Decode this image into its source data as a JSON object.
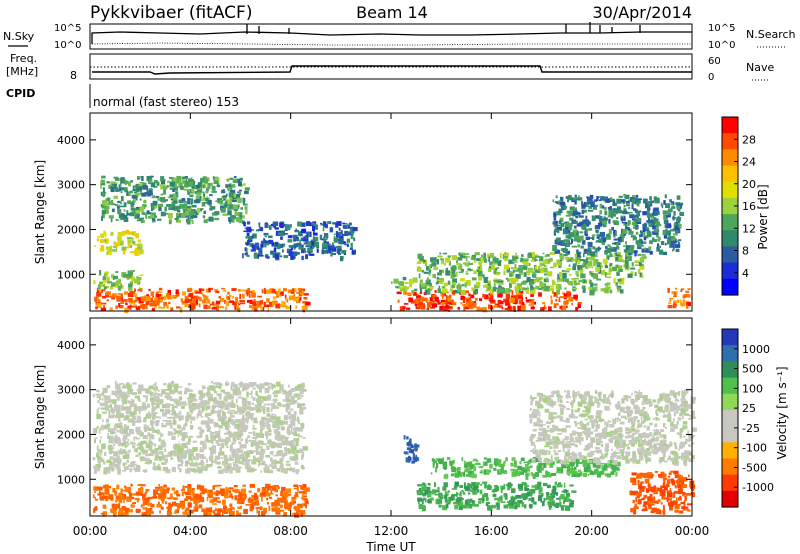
{
  "header": {
    "station": "Pykkvibaer (fitACF)",
    "beam": "Beam 14",
    "date": "30/Apr/2014"
  },
  "top_panel": {
    "nsky_label": "N.Sky",
    "nsearch_label": "N.Search",
    "left_ticks": [
      "10^5",
      "10^0"
    ],
    "right_ticks": [
      "10^5",
      "10^0"
    ],
    "freq_label": "Freq.",
    "freq_unit": "[MHz]",
    "freq_ticks": [
      "8"
    ],
    "nave_label": "Nave",
    "nave_ticks": [
      "60",
      "0"
    ],
    "cpid_label": "CPID",
    "mode_label": "normal (fast stereo) 153"
  },
  "power_scale": {
    "title": "Power [dB]",
    "ticks": [
      "28",
      "24",
      "20",
      "16",
      "12",
      "8",
      "4"
    ],
    "colors": [
      "#ff0000",
      "#ff4a00",
      "#ff8c00",
      "#ffc000",
      "#dfe000",
      "#9ed23c",
      "#4ea65c",
      "#2f8a6c",
      "#2a5ca6",
      "#1b2cd8",
      "#0000ff"
    ]
  },
  "velocity_scale": {
    "title": "Velocity [m s⁻¹]",
    "ticks": [
      "1000",
      "500",
      "100",
      "25",
      "-25",
      "-100",
      "-500",
      "-1000"
    ],
    "colors": [
      "#2638b8",
      "#2f6fae",
      "#2e8f5a",
      "#4fc04a",
      "#8fd85a",
      "#c8c8c0",
      "#c8c8c0",
      "#ffb000",
      "#ff7a00",
      "#ff3a00",
      "#e00000"
    ]
  },
  "axes": {
    "ylabel": "Slant Range [km]",
    "y_ticks": [
      "4000",
      "3000",
      "2000",
      "1000"
    ],
    "x_ticks": [
      "00:00",
      "04:00",
      "08:00",
      "12:00",
      "16:00",
      "20:00",
      "00:00"
    ],
    "xlabel": "Time UT"
  },
  "chart_data": [
    {
      "type": "heatmap",
      "title": "",
      "ylabel": "Slant Range [km]",
      "xlabel": "",
      "xlim": [
        0,
        24
      ],
      "ylim": [
        180,
        4600
      ],
      "colorbar_label": "Power [dB]",
      "colorbar_ticks": [
        4,
        8,
        12,
        16,
        20,
        24,
        28
      ],
      "regions": [
        {
          "t0": 0.1,
          "t1": 8.6,
          "r0": 250,
          "r1": 700,
          "value": 26
        },
        {
          "t0": 0.1,
          "t1": 2.0,
          "r0": 700,
          "r1": 1100,
          "value": 16
        },
        {
          "t0": 0.1,
          "t1": 2.0,
          "r0": 1500,
          "r1": 2000,
          "value": 18
        },
        {
          "t0": 0.4,
          "t1": 6.2,
          "r0": 2200,
          "r1": 3200,
          "value": 12
        },
        {
          "t0": 6.0,
          "t1": 10.5,
          "r0": 1400,
          "r1": 2200,
          "value": 8
        },
        {
          "t0": 12.2,
          "t1": 19.5,
          "r0": 250,
          "r1": 650,
          "value": 28
        },
        {
          "t0": 12.0,
          "t1": 21.2,
          "r0": 650,
          "r1": 950,
          "value": 14
        },
        {
          "t0": 13.0,
          "t1": 22.0,
          "r0": 1000,
          "r1": 1500,
          "value": 14
        },
        {
          "t0": 18.4,
          "t1": 23.5,
          "r0": 1500,
          "r1": 2800,
          "value": 10
        },
        {
          "t0": 23.0,
          "t1": 24.0,
          "r0": 300,
          "r1": 700,
          "value": 26
        }
      ]
    },
    {
      "type": "heatmap",
      "title": "",
      "ylabel": "Slant Range [km]",
      "xlabel": "Time UT",
      "xlim": [
        0,
        24
      ],
      "ylim": [
        180,
        4600
      ],
      "colorbar_label": "Velocity [m s⁻¹]",
      "colorbar_ticks": [
        1000,
        500,
        100,
        25,
        -25,
        -100,
        -500,
        -1000
      ],
      "regions": [
        {
          "t0": 0.1,
          "t1": 8.6,
          "r0": 250,
          "r1": 900,
          "value": -300
        },
        {
          "t0": 0.1,
          "t1": 8.5,
          "r0": 1200,
          "r1": 3200,
          "value": 0
        },
        {
          "t0": 12.5,
          "t1": 13.0,
          "r0": 1400,
          "r1": 2000,
          "value": 700
        },
        {
          "t0": 13.0,
          "t1": 19.2,
          "r0": 400,
          "r1": 950,
          "value": 150
        },
        {
          "t0": 13.5,
          "t1": 21.0,
          "r0": 1100,
          "r1": 1500,
          "value": 100
        },
        {
          "t0": 17.5,
          "t1": 24.0,
          "r0": 1400,
          "r1": 3000,
          "value": 0
        },
        {
          "t0": 21.5,
          "t1": 24.0,
          "r0": 300,
          "r1": 1200,
          "value": -400
        }
      ]
    }
  ]
}
